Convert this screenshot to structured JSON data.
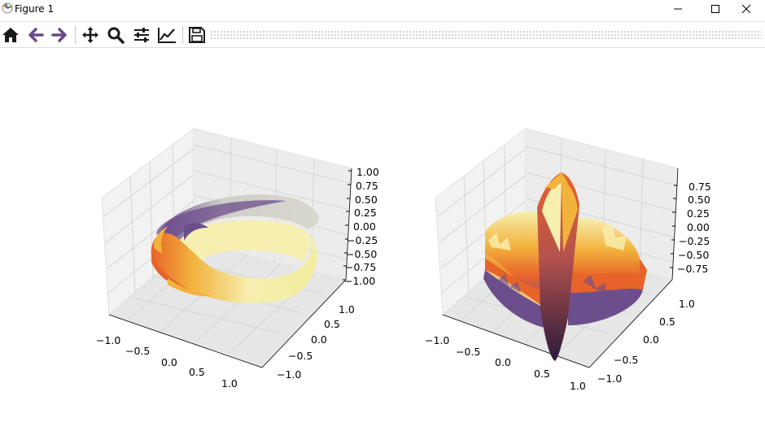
{
  "window": {
    "title": "Figure 1"
  },
  "toolbar": {
    "buttons": [
      {
        "name": "home-button",
        "icon": "home-icon"
      },
      {
        "name": "back-button",
        "icon": "arrow-left-icon"
      },
      {
        "name": "forward-button",
        "icon": "arrow-right-icon"
      },
      {
        "name": "pan-button",
        "icon": "move-icon"
      },
      {
        "name": "zoom-button",
        "icon": "magnifier-icon"
      },
      {
        "name": "configure-subplots-button",
        "icon": "sliders-icon"
      },
      {
        "name": "edit-axes-button",
        "icon": "line-chart-icon"
      },
      {
        "name": "save-button",
        "icon": "floppy-disk-icon"
      }
    ]
  },
  "chart_data": [
    {
      "type": "surface3d",
      "shape": "mobius-strip",
      "colormap": "inferno-like (purple → orange → pale yellow)",
      "x_ticks": [
        "−1.0",
        "−0.5",
        "0.0",
        "0.5",
        "1.0"
      ],
      "y_ticks": [
        "−1.0",
        "−0.5",
        "0.0",
        "0.5",
        "1.0"
      ],
      "z_ticks": [
        "1.00",
        "0.75",
        "0.50",
        "0.25",
        "0.00",
        "−0.25",
        "−0.50",
        "−0.75",
        "−1.00"
      ],
      "xlim": [
        -1.0,
        1.0
      ],
      "ylim": [
        -1.0,
        1.0
      ],
      "zlim": [
        -1.0,
        1.0
      ],
      "grid": true
    },
    {
      "type": "surface3d",
      "shape": "saddle-wave",
      "colormap": "inferno-like (purple → orange → pale yellow)",
      "x_ticks": [
        "−1.0",
        "−0.5",
        "0.0",
        "0.5",
        "1.0"
      ],
      "y_ticks": [
        "−1.0",
        "−0.5",
        "0.0",
        "0.5",
        "1.0"
      ],
      "z_ticks": [
        "0.75",
        "0.50",
        "0.25",
        "0.00",
        "−0.25",
        "−0.50",
        "−0.75"
      ],
      "xlim": [
        -1.0,
        1.0
      ],
      "ylim": [
        -1.0,
        1.0
      ],
      "zlim": [
        -0.9,
        0.9
      ],
      "grid": true
    }
  ],
  "colors": {
    "toolbar_icon": "#1a1a1a",
    "toolbar_arrow": "#6b4a8a",
    "pane": "#f2f2f2",
    "grid": "#d2d2d2",
    "cmap": [
      "#6d4e8c",
      "#e8632a",
      "#f2b33d",
      "#f7efb0",
      "#c9c9c0"
    ]
  }
}
